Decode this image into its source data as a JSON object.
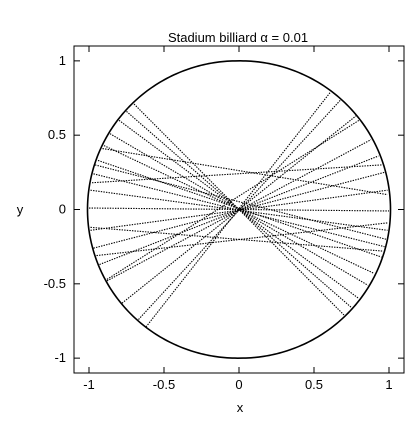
{
  "chart_data": {
    "type": "scatter",
    "title": "Stadium billiard   α = 0.01",
    "xlabel": "x",
    "ylabel": "y",
    "xlim": [
      -1.1,
      1.1
    ],
    "ylim": [
      -1.1,
      1.1
    ],
    "xticks": [
      -1,
      -0.5,
      0,
      0.5,
      1
    ],
    "xtick_labels": [
      "-1",
      "-0.5",
      "0",
      "0.5",
      "1"
    ],
    "yticks": [
      -1,
      -0.5,
      0,
      0.5,
      1
    ],
    "ytick_labels": [
      "-1",
      "-0.5",
      "0",
      "0.5",
      "1"
    ],
    "grid": false,
    "legend": "none",
    "boundary": {
      "shape": "stadium",
      "alpha": 0.01,
      "radius": 1.0
    },
    "color": "#000000",
    "trajectory_segments": [
      {
        "x1": -0.75,
        "y1": 0.66,
        "x2": 0.75,
        "y2": -0.66
      },
      {
        "x1": -0.8,
        "y1": 0.6,
        "x2": 0.8,
        "y2": -0.6
      },
      {
        "x1": -0.86,
        "y1": 0.51,
        "x2": 0.86,
        "y2": -0.51
      },
      {
        "x1": -0.9,
        "y1": 0.43,
        "x2": 0.9,
        "y2": -0.43
      },
      {
        "x1": -0.94,
        "y1": 0.33,
        "x2": 0.95,
        "y2": -0.32
      },
      {
        "x1": -0.97,
        "y1": 0.24,
        "x2": 0.97,
        "y2": -0.25
      },
      {
        "x1": -0.99,
        "y1": 0.13,
        "x2": 0.99,
        "y2": -0.14
      },
      {
        "x1": -1.0,
        "y1": 0.01,
        "x2": 1.0,
        "y2": -0.01
      },
      {
        "x1": -0.62,
        "y1": -0.79,
        "x2": 0.61,
        "y2": 0.79
      },
      {
        "x1": -0.67,
        "y1": -0.74,
        "x2": 0.68,
        "y2": 0.74
      },
      {
        "x1": -0.78,
        "y1": -0.63,
        "x2": 0.78,
        "y2": 0.63
      },
      {
        "x1": -0.88,
        "y1": -0.48,
        "x2": 0.88,
        "y2": 0.47
      },
      {
        "x1": -0.93,
        "y1": -0.37,
        "x2": 0.93,
        "y2": 0.36
      },
      {
        "x1": -0.97,
        "y1": -0.26,
        "x2": 0.97,
        "y2": 0.25
      },
      {
        "x1": -0.99,
        "y1": -0.14,
        "x2": 0.99,
        "y2": 0.13
      },
      {
        "x1": -0.96,
        "y1": 0.3,
        "x2": 0.98,
        "y2": -0.2
      },
      {
        "x1": -0.99,
        "y1": -0.12,
        "x2": 0.96,
        "y2": -0.28
      },
      {
        "x1": -0.88,
        "y1": -0.47,
        "x2": 0.8,
        "y2": 0.6
      },
      {
        "x1": -0.7,
        "y1": 0.71,
        "x2": 0.7,
        "y2": -0.71
      },
      {
        "x1": -0.91,
        "y1": 0.41,
        "x2": 0.99,
        "y2": 0.1
      },
      {
        "x1": -0.98,
        "y1": 0.18,
        "x2": 0.95,
        "y2": 0.3
      },
      {
        "x1": -0.95,
        "y1": -0.31,
        "x2": 0.99,
        "y2": -0.09
      }
    ]
  }
}
